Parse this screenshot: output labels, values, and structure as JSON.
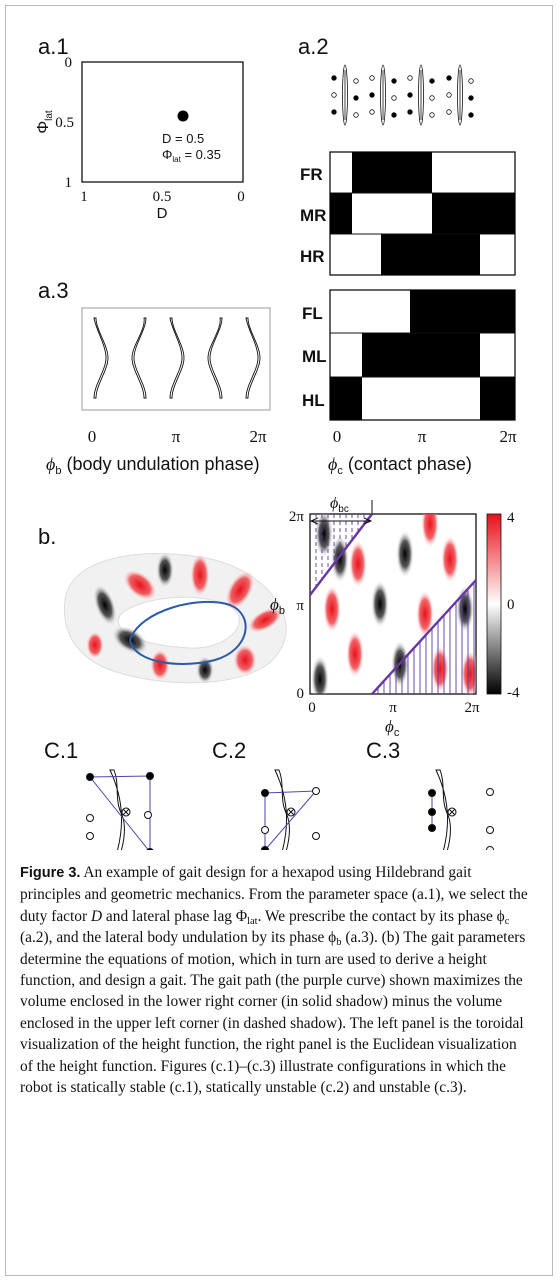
{
  "a1": {
    "label": "a.1",
    "yticks": [
      "0",
      "0.5",
      "1"
    ],
    "xticks": [
      "1",
      "0.5",
      "0"
    ],
    "ylabel": {
      "symbol": "Φ",
      "sub": "lat"
    },
    "xlabel": "D",
    "note_d": "D  = 0.5",
    "note_phi": {
      "symbol": "Φ",
      "sub": "lat",
      "text": " = 0.35"
    }
  },
  "a2": {
    "label": "a.2",
    "rows_right": [
      "FR",
      "MR",
      "HR"
    ],
    "rows_left": [
      "FL",
      "ML",
      "HL"
    ],
    "xticks": [
      "0",
      "π",
      "2π"
    ],
    "xlabel": {
      "symbol": "ϕ",
      "sub": "c",
      "text": " (contact phase)"
    }
  },
  "a3": {
    "label": "a.3",
    "xticks": [
      "0",
      "π",
      "2π"
    ],
    "xlabel": {
      "symbol": "ϕ",
      "sub": "b",
      "text": " (body undulation phase)"
    }
  },
  "b": {
    "label": "b.",
    "yticks": [
      "2π",
      "π",
      "0"
    ],
    "xticks": [
      "0",
      "π",
      "2π"
    ],
    "ylabel": {
      "symbol": "ϕ",
      "sub": "b"
    },
    "xlabel": {
      "symbol": "ϕ",
      "sub": "c"
    },
    "offset_label": {
      "symbol": "ϕ",
      "sub": "bc"
    },
    "colorbar_ticks": [
      "4",
      "0",
      "-4"
    ]
  },
  "c": {
    "labels": [
      "C.1",
      "C.2",
      "C.3"
    ]
  },
  "caption": {
    "runs": [
      {
        "style": "bold",
        "text": "Figure 3."
      },
      {
        "style": "plain",
        "text": "  An example of gait design for a hexapod using Hildebrand gait principles and geometric mechanics. From the parameter space (a.1), we select the duty factor "
      },
      {
        "style": "italic",
        "text": "D"
      },
      {
        "style": "plain",
        "text": " and lateral phase lag Φ"
      },
      {
        "style": "sub",
        "text": "lat"
      },
      {
        "style": "plain",
        "text": ". We prescribe the contact by its phase ϕ"
      },
      {
        "style": "sub",
        "text": "c"
      },
      {
        "style": "plain",
        "text": " (a.2), and the lateral body undulation by its phase ϕ"
      },
      {
        "style": "sub",
        "text": "b"
      },
      {
        "style": "plain",
        "text": " (a.3). (b) The gait parameters determine the equations of motion, which in turn are used to derive a height function, and design a gait. The gait path (the purple curve) shown maximizes the volume enclosed in the lower right corner (in solid shadow) minus the volume enclosed in the upper left corner (in dashed shadow). The left panel is the toroidal visualization of the height function, the right panel is the Euclidean visualization of the height function. Figures (c.1)–(c.3) illustrate configurations in which the robot is statically stable (c.1), statically unstable (c.2) and unstable (c.3)."
      }
    ]
  }
}
